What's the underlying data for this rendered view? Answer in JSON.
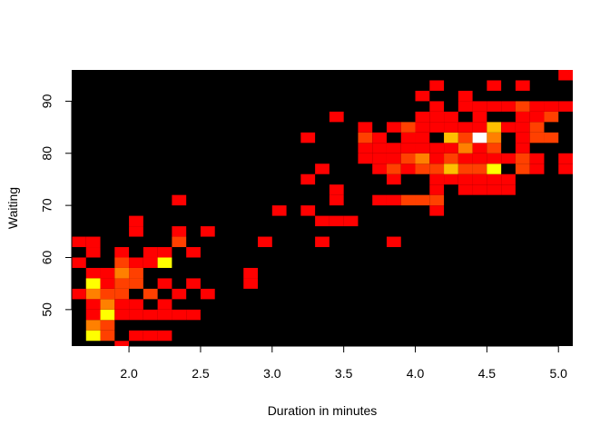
{
  "chart_data": {
    "type": "heatmap",
    "xlabel": "Duration in minutes",
    "ylabel": "Waiting",
    "xlim": [
      1.6,
      5.1
    ],
    "ylim": [
      43,
      96
    ],
    "x_ticks": [
      2.0,
      2.5,
      3.0,
      3.5,
      4.0,
      4.5,
      5.0
    ],
    "x_tick_labels": [
      "2.0",
      "2.5",
      "3.0",
      "3.5",
      "4.0",
      "4.5",
      "5.0"
    ],
    "y_ticks": [
      50,
      60,
      70,
      80,
      90
    ],
    "y_tick_labels": [
      "50",
      "60",
      "70",
      "80",
      "90"
    ],
    "background_color": "#000000",
    "color_scale": [
      "#000000",
      "#ff0000",
      "#ff4000",
      "#ff8000",
      "#ffbf00",
      "#ffff00",
      "#ffffff"
    ],
    "bin_width_x": 0.1,
    "bin_height_y": 2,
    "cells": [
      [
        1.65,
        63,
        1
      ],
      [
        1.75,
        63,
        1
      ],
      [
        1.65,
        59,
        1
      ],
      [
        1.75,
        61,
        1
      ],
      [
        1.75,
        57,
        1
      ],
      [
        1.75,
        55,
        1
      ],
      [
        1.75,
        53,
        3
      ],
      [
        1.65,
        53,
        1
      ],
      [
        1.75,
        51,
        1
      ],
      [
        1.75,
        49,
        1
      ],
      [
        1.75,
        47,
        3
      ],
      [
        1.75,
        45,
        5
      ],
      [
        1.75,
        55,
        5
      ],
      [
        1.85,
        45,
        2
      ],
      [
        1.85,
        47,
        2
      ],
      [
        1.85,
        49,
        5
      ],
      [
        1.85,
        51,
        3
      ],
      [
        1.85,
        53,
        2
      ],
      [
        1.85,
        55,
        1
      ],
      [
        1.85,
        57,
        1
      ],
      [
        1.95,
        53,
        2
      ],
      [
        1.95,
        55,
        2
      ],
      [
        1.95,
        57,
        3
      ],
      [
        1.95,
        59,
        2
      ],
      [
        1.95,
        61,
        1
      ],
      [
        1.95,
        51,
        1
      ],
      [
        1.95,
        49,
        1
      ],
      [
        1.95,
        43,
        1
      ],
      [
        2.05,
        55,
        2
      ],
      [
        2.05,
        57,
        2
      ],
      [
        2.05,
        59,
        1
      ],
      [
        2.05,
        51,
        1
      ],
      [
        2.05,
        49,
        1
      ],
      [
        2.05,
        45,
        1
      ],
      [
        2.05,
        65,
        1
      ],
      [
        2.05,
        67,
        1
      ],
      [
        2.15,
        45,
        1
      ],
      [
        2.15,
        53,
        2
      ],
      [
        2.15,
        59,
        1
      ],
      [
        2.15,
        61,
        1
      ],
      [
        2.15,
        49,
        1
      ],
      [
        2.25,
        45,
        1
      ],
      [
        2.25,
        51,
        1
      ],
      [
        2.25,
        55,
        1
      ],
      [
        2.25,
        59,
        5
      ],
      [
        2.25,
        61,
        1
      ],
      [
        2.25,
        49,
        1
      ],
      [
        2.35,
        49,
        1
      ],
      [
        2.35,
        53,
        1
      ],
      [
        2.35,
        63,
        2
      ],
      [
        2.35,
        65,
        1
      ],
      [
        2.35,
        71,
        1
      ],
      [
        2.45,
        49,
        1
      ],
      [
        2.45,
        55,
        1
      ],
      [
        2.45,
        61,
        1
      ],
      [
        2.55,
        53,
        1
      ],
      [
        2.55,
        65,
        1
      ],
      [
        2.85,
        55,
        1
      ],
      [
        2.85,
        57,
        1
      ],
      [
        2.95,
        63,
        1
      ],
      [
        3.05,
        69,
        1
      ],
      [
        3.25,
        69,
        1
      ],
      [
        3.25,
        75,
        1
      ],
      [
        3.25,
        83,
        1
      ],
      [
        3.35,
        63,
        1
      ],
      [
        3.35,
        67,
        1
      ],
      [
        3.35,
        77,
        1
      ],
      [
        3.45,
        67,
        1
      ],
      [
        3.45,
        71,
        1
      ],
      [
        3.45,
        73,
        1
      ],
      [
        3.45,
        87,
        1
      ],
      [
        3.55,
        67,
        1
      ],
      [
        3.65,
        79,
        1
      ],
      [
        3.65,
        81,
        1
      ],
      [
        3.65,
        83,
        2
      ],
      [
        3.65,
        85,
        1
      ],
      [
        3.75,
        71,
        1
      ],
      [
        3.75,
        77,
        1
      ],
      [
        3.75,
        79,
        1
      ],
      [
        3.75,
        81,
        1
      ],
      [
        3.75,
        83,
        1
      ],
      [
        3.85,
        63,
        1
      ],
      [
        3.85,
        71,
        1
      ],
      [
        3.85,
        75,
        1
      ],
      [
        3.85,
        77,
        2
      ],
      [
        3.85,
        79,
        1
      ],
      [
        3.85,
        81,
        1
      ],
      [
        3.85,
        85,
        1
      ],
      [
        3.95,
        71,
        2
      ],
      [
        3.95,
        77,
        1
      ],
      [
        3.95,
        79,
        2
      ],
      [
        3.95,
        81,
        1
      ],
      [
        3.95,
        83,
        1
      ],
      [
        3.95,
        85,
        2
      ],
      [
        4.05,
        71,
        2
      ],
      [
        4.05,
        77,
        2
      ],
      [
        4.05,
        79,
        3
      ],
      [
        4.05,
        81,
        1
      ],
      [
        4.05,
        83,
        1
      ],
      [
        4.05,
        85,
        1
      ],
      [
        4.05,
        87,
        1
      ],
      [
        4.05,
        91,
        1
      ],
      [
        4.15,
        69,
        1
      ],
      [
        4.15,
        71,
        2
      ],
      [
        4.15,
        73,
        1
      ],
      [
        4.15,
        75,
        1
      ],
      [
        4.15,
        77,
        2
      ],
      [
        4.15,
        79,
        1
      ],
      [
        4.15,
        81,
        1
      ],
      [
        4.15,
        85,
        1
      ],
      [
        4.15,
        87,
        1
      ],
      [
        4.15,
        89,
        1
      ],
      [
        4.15,
        93,
        1
      ],
      [
        4.25,
        75,
        1
      ],
      [
        4.25,
        77,
        4
      ],
      [
        4.25,
        79,
        2
      ],
      [
        4.25,
        81,
        1
      ],
      [
        4.25,
        83,
        4
      ],
      [
        4.25,
        85,
        1
      ],
      [
        4.25,
        87,
        1
      ],
      [
        4.35,
        73,
        1
      ],
      [
        4.35,
        75,
        1
      ],
      [
        4.35,
        77,
        2
      ],
      [
        4.35,
        79,
        1
      ],
      [
        4.35,
        81,
        3
      ],
      [
        4.35,
        83,
        2
      ],
      [
        4.35,
        85,
        1
      ],
      [
        4.35,
        89,
        1
      ],
      [
        4.35,
        91,
        1
      ],
      [
        4.45,
        73,
        1
      ],
      [
        4.45,
        75,
        1
      ],
      [
        4.45,
        77,
        2
      ],
      [
        4.45,
        79,
        1
      ],
      [
        4.45,
        81,
        1
      ],
      [
        4.45,
        83,
        6
      ],
      [
        4.45,
        85,
        1
      ],
      [
        4.45,
        87,
        1
      ],
      [
        4.45,
        89,
        1
      ],
      [
        4.55,
        73,
        1
      ],
      [
        4.55,
        75,
        1
      ],
      [
        4.55,
        77,
        5
      ],
      [
        4.55,
        79,
        1
      ],
      [
        4.55,
        81,
        2
      ],
      [
        4.55,
        83,
        3
      ],
      [
        4.55,
        85,
        4
      ],
      [
        4.55,
        89,
        1
      ],
      [
        4.55,
        93,
        1
      ],
      [
        4.65,
        73,
        1
      ],
      [
        4.65,
        75,
        1
      ],
      [
        4.65,
        79,
        1
      ],
      [
        4.65,
        85,
        1
      ],
      [
        4.65,
        89,
        1
      ],
      [
        4.75,
        77,
        2
      ],
      [
        4.75,
        79,
        2
      ],
      [
        4.75,
        81,
        1
      ],
      [
        4.75,
        83,
        1
      ],
      [
        4.75,
        85,
        1
      ],
      [
        4.75,
        87,
        1
      ],
      [
        4.75,
        89,
        2
      ],
      [
        4.75,
        93,
        1
      ],
      [
        4.85,
        77,
        1
      ],
      [
        4.85,
        79,
        1
      ],
      [
        4.85,
        83,
        2
      ],
      [
        4.85,
        85,
        2
      ],
      [
        4.85,
        87,
        1
      ],
      [
        4.85,
        89,
        1
      ],
      [
        4.95,
        83,
        2
      ],
      [
        4.95,
        87,
        2
      ],
      [
        4.95,
        89,
        1
      ],
      [
        5.05,
        77,
        1
      ],
      [
        5.05,
        79,
        1
      ],
      [
        5.05,
        89,
        1
      ],
      [
        5.05,
        95,
        1
      ]
    ]
  }
}
